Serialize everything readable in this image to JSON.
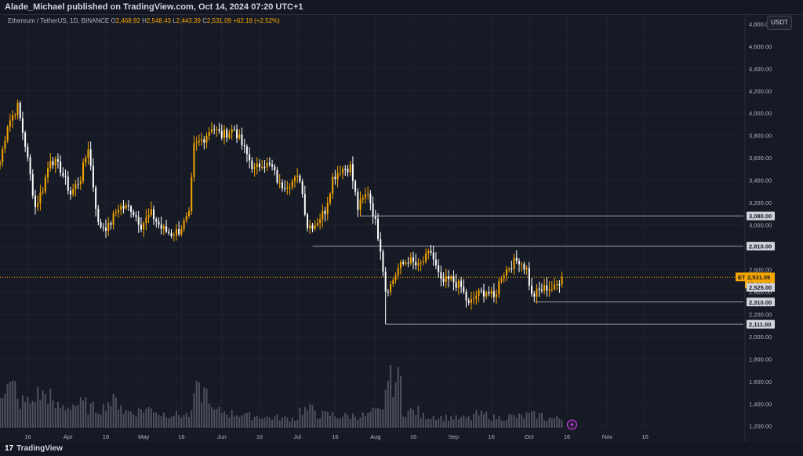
{
  "header": {
    "publisher": "Alade_Michael published on TradingView.com, Oct 14, 2024 07:20 UTC+1"
  },
  "legend": {
    "symbol": "Ethereum / TetherUS, 1D, BINANCE",
    "open_label": "O",
    "open": "2,468.92",
    "high_label": "H",
    "high": "2,548.43",
    "low_label": "L",
    "low": "2,443.39",
    "close_label": "C",
    "close": "2,531.09",
    "change": "+62.18 (+2.52%)"
  },
  "currency_button": "USDT",
  "footer": {
    "brand": "TradingView",
    "logo_mark": "17"
  },
  "colors": {
    "up": "#f7a600",
    "down": "#ffffff",
    "background": "#161a25",
    "grid": "#1f2330"
  },
  "chart_data": {
    "type": "candlestick",
    "symbol": "ETHUSDT",
    "y_ticks": [
      1200,
      1400,
      1600,
      1800,
      2000,
      2200,
      2400,
      2600,
      2800,
      3000,
      3200,
      3400,
      3600,
      3800,
      4000,
      4200,
      4400,
      4600,
      4800
    ],
    "y_tick_labels": [
      "1,200.00",
      "1,400.00",
      "1,600.00",
      "1,800.00",
      "2,000.00",
      "2,200.00",
      "2,400.00",
      "2,600.00",
      "2,800.00",
      "3,000.00",
      "3,200.00",
      "3,400.00",
      "3,600.00",
      "3,800.00",
      "4,000.00",
      "4,200.00",
      "4,400.00",
      "4,600.00",
      "4,800.00"
    ],
    "ylim": [
      1170,
      4880
    ],
    "x_range": [
      "2024-03-05",
      "2024-12-25"
    ],
    "x_ticks": [
      {
        "date": "2024-03-16",
        "label": "16"
      },
      {
        "date": "2024-04-01",
        "label": "Apr"
      },
      {
        "date": "2024-04-16",
        "label": "16"
      },
      {
        "date": "2024-05-01",
        "label": "May"
      },
      {
        "date": "2024-05-16",
        "label": "16"
      },
      {
        "date": "2024-06-01",
        "label": "Jun"
      },
      {
        "date": "2024-06-16",
        "label": "16"
      },
      {
        "date": "2024-07-01",
        "label": "Jul"
      },
      {
        "date": "2024-07-16",
        "label": "16"
      },
      {
        "date": "2024-08-01",
        "label": "Aug"
      },
      {
        "date": "2024-08-16",
        "label": "16"
      },
      {
        "date": "2024-09-01",
        "label": "Sep"
      },
      {
        "date": "2024-09-16",
        "label": "16"
      },
      {
        "date": "2024-10-01",
        "label": "Oct"
      },
      {
        "date": "2024-10-16",
        "label": "16"
      },
      {
        "date": "2024-11-01",
        "label": "Nov"
      },
      {
        "date": "2024-11-16",
        "label": "16"
      }
    ],
    "horizontal_levels": [
      {
        "value": 3080,
        "label": "3,080.00",
        "from": "2024-07-26"
      },
      {
        "value": 2810,
        "label": "2,810.00",
        "from": "2024-07-07"
      },
      {
        "value": 2310,
        "label": "2,310.00",
        "from": "2024-10-03"
      },
      {
        "value": 2111,
        "label": "2,111.00",
        "from": "2024-08-05"
      }
    ],
    "last_price": {
      "value": 2531.09,
      "symbol_label": "ETHUSDT",
      "price_label": "2,531.09",
      "countdown": "17:39:16"
    },
    "extra_price_label": {
      "value": 2525,
      "label": "2,525.00"
    },
    "closes": [
      {
        "date": "2024-03-05",
        "close": 3560
      },
      {
        "date": "2024-03-08",
        "close": 3900
      },
      {
        "date": "2024-03-12",
        "close": 4060
      },
      {
        "date": "2024-03-15",
        "close": 3720
      },
      {
        "date": "2024-03-19",
        "close": 3160
      },
      {
        "date": "2024-03-22",
        "close": 3330
      },
      {
        "date": "2024-03-25",
        "close": 3600
      },
      {
        "date": "2024-03-29",
        "close": 3500
      },
      {
        "date": "2024-04-02",
        "close": 3280
      },
      {
        "date": "2024-04-06",
        "close": 3420
      },
      {
        "date": "2024-04-09",
        "close": 3700
      },
      {
        "date": "2024-04-13",
        "close": 3000
      },
      {
        "date": "2024-04-17",
        "close": 2980
      },
      {
        "date": "2024-04-21",
        "close": 3160
      },
      {
        "date": "2024-04-26",
        "close": 3150
      },
      {
        "date": "2024-04-30",
        "close": 3000
      },
      {
        "date": "2024-05-04",
        "close": 3100
      },
      {
        "date": "2024-05-08",
        "close": 2970
      },
      {
        "date": "2024-05-12",
        "close": 2920
      },
      {
        "date": "2024-05-15",
        "close": 2950
      },
      {
        "date": "2024-05-19",
        "close": 3080
      },
      {
        "date": "2024-05-21",
        "close": 3700
      },
      {
        "date": "2024-05-25",
        "close": 3780
      },
      {
        "date": "2024-05-28",
        "close": 3880
      },
      {
        "date": "2024-06-01",
        "close": 3800
      },
      {
        "date": "2024-06-06",
        "close": 3860
      },
      {
        "date": "2024-06-10",
        "close": 3670
      },
      {
        "date": "2024-06-14",
        "close": 3490
      },
      {
        "date": "2024-06-17",
        "close": 3560
      },
      {
        "date": "2024-06-21",
        "close": 3510
      },
      {
        "date": "2024-06-24",
        "close": 3350
      },
      {
        "date": "2024-06-28",
        "close": 3380
      },
      {
        "date": "2024-07-02",
        "close": 3420
      },
      {
        "date": "2024-07-05",
        "close": 2990
      },
      {
        "date": "2024-07-08",
        "close": 3010
      },
      {
        "date": "2024-07-12",
        "close": 3130
      },
      {
        "date": "2024-07-15",
        "close": 3420
      },
      {
        "date": "2024-07-18",
        "close": 3500
      },
      {
        "date": "2024-07-22",
        "close": 3520
      },
      {
        "date": "2024-07-25",
        "close": 3150
      },
      {
        "date": "2024-07-29",
        "close": 3300
      },
      {
        "date": "2024-08-01",
        "close": 3020
      },
      {
        "date": "2024-08-03",
        "close": 2800
      },
      {
        "date": "2024-08-05",
        "close": 2420
      },
      {
        "date": "2024-08-07",
        "close": 2460
      },
      {
        "date": "2024-08-10",
        "close": 2610
      },
      {
        "date": "2024-08-14",
        "close": 2690
      },
      {
        "date": "2024-08-18",
        "close": 2620
      },
      {
        "date": "2024-08-23",
        "close": 2760
      },
      {
        "date": "2024-08-27",
        "close": 2480
      },
      {
        "date": "2024-08-31",
        "close": 2510
      },
      {
        "date": "2024-09-04",
        "close": 2440
      },
      {
        "date": "2024-09-07",
        "close": 2280
      },
      {
        "date": "2024-09-10",
        "close": 2370
      },
      {
        "date": "2024-09-14",
        "close": 2410
      },
      {
        "date": "2024-09-17",
        "close": 2340
      },
      {
        "date": "2024-09-20",
        "close": 2550
      },
      {
        "date": "2024-09-24",
        "close": 2650
      },
      {
        "date": "2024-09-27",
        "close": 2690
      },
      {
        "date": "2024-09-30",
        "close": 2600
      },
      {
        "date": "2024-10-02",
        "close": 2360
      },
      {
        "date": "2024-10-05",
        "close": 2410
      },
      {
        "date": "2024-10-08",
        "close": 2440
      },
      {
        "date": "2024-10-11",
        "close": 2430
      },
      {
        "date": "2024-10-14",
        "close": 2531
      }
    ],
    "volume": {
      "dates": [
        "2024-03-05",
        "2024-03-12",
        "2024-03-19",
        "2024-03-26",
        "2024-04-02",
        "2024-04-09",
        "2024-04-16",
        "2024-04-23",
        "2024-04-30",
        "2024-05-07",
        "2024-05-14",
        "2024-05-21",
        "2024-05-28",
        "2024-06-04",
        "2024-06-11",
        "2024-06-18",
        "2024-06-25",
        "2024-07-02",
        "2024-07-09",
        "2024-07-16",
        "2024-07-23",
        "2024-07-30",
        "2024-08-05",
        "2024-08-12",
        "2024-08-19",
        "2024-08-26",
        "2024-09-02",
        "2024-09-09",
        "2024-09-16",
        "2024-09-23",
        "2024-09-30",
        "2024-10-07",
        "2024-10-14"
      ],
      "values": [
        0.85,
        0.55,
        0.7,
        0.45,
        0.5,
        0.42,
        0.55,
        0.35,
        0.4,
        0.3,
        0.28,
        0.75,
        0.35,
        0.3,
        0.25,
        0.22,
        0.2,
        0.38,
        0.28,
        0.25,
        0.26,
        0.33,
        1.0,
        0.35,
        0.25,
        0.22,
        0.2,
        0.28,
        0.22,
        0.24,
        0.27,
        0.2,
        0.18
      ]
    }
  }
}
